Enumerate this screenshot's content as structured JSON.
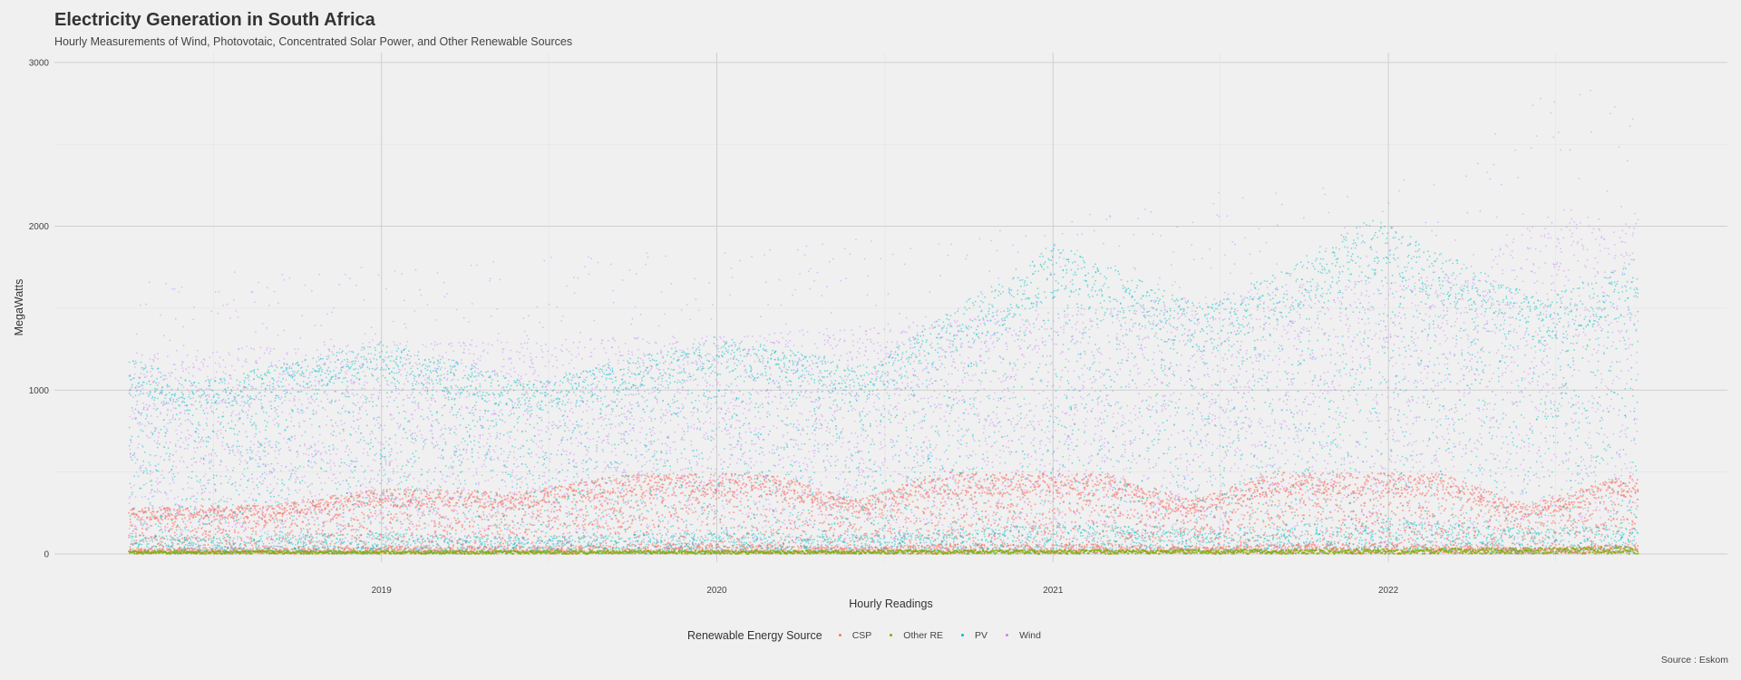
{
  "title": "Electricity Generation in South Africa",
  "subtitle": "Hourly Measurements of Wind, Photovotaic, Concentrated Solar Power, and Other Renewable Sources",
  "caption": "Source : Eskom",
  "chart_data": {
    "type": "scatter",
    "xlabel": "Hourly Readings",
    "ylabel": "MegaWatts",
    "x_range": [
      "2018-04-01",
      "2022-09-30"
    ],
    "xlim": [
      "2018-01-10",
      "2023-01-05"
    ],
    "ylim": [
      -50,
      3060
    ],
    "yticks": [
      0,
      1000,
      2000,
      3000
    ],
    "xticks": [
      "2019",
      "2020",
      "2021",
      "2022"
    ],
    "grid": true,
    "legend_title": "Renewable Energy Source",
    "legend_position": "bottom",
    "series": [
      {
        "name": "CSP",
        "color": "#F8766D",
        "typical_max": [
          {
            "date": "2018-04-01",
            "value": 280
          },
          {
            "date": "2018-09-01",
            "value": 300
          },
          {
            "date": "2019-01-01",
            "value": 400
          },
          {
            "date": "2019-06-01",
            "value": 380
          },
          {
            "date": "2019-10-01",
            "value": 490
          },
          {
            "date": "2020-03-01",
            "value": 490
          },
          {
            "date": "2020-06-01",
            "value": 330
          },
          {
            "date": "2020-09-01",
            "value": 500
          },
          {
            "date": "2021-03-01",
            "value": 490
          },
          {
            "date": "2021-06-01",
            "value": 330
          },
          {
            "date": "2021-09-01",
            "value": 500
          },
          {
            "date": "2022-03-01",
            "value": 490
          },
          {
            "date": "2022-06-01",
            "value": 300
          },
          {
            "date": "2022-09-30",
            "value": 500
          }
        ]
      },
      {
        "name": "Other RE",
        "color": "#7CAE00",
        "typical_max": [
          {
            "date": "2018-04-01",
            "value": 20
          },
          {
            "date": "2020-01-01",
            "value": 20
          },
          {
            "date": "2022-01-01",
            "value": 30
          },
          {
            "date": "2022-09-30",
            "value": 45
          }
        ]
      },
      {
        "name": "PV",
        "color": "#00BFC4",
        "typical_max": [
          {
            "date": "2018-04-01",
            "value": 1200
          },
          {
            "date": "2018-06-15",
            "value": 1050
          },
          {
            "date": "2019-01-01",
            "value": 1300
          },
          {
            "date": "2019-06-15",
            "value": 1050
          },
          {
            "date": "2020-01-01",
            "value": 1330
          },
          {
            "date": "2020-06-15",
            "value": 1150
          },
          {
            "date": "2021-01-01",
            "value": 1900
          },
          {
            "date": "2021-06-15",
            "value": 1500
          },
          {
            "date": "2021-12-15",
            "value": 2050
          },
          {
            "date": "2022-06-15",
            "value": 1550
          },
          {
            "date": "2022-09-30",
            "value": 1800
          }
        ]
      },
      {
        "name": "Wind",
        "color": "#C77CFF",
        "typical_max": [
          {
            "date": "2018-04-01",
            "value": 1700
          },
          {
            "date": "2019-01-01",
            "value": 1800
          },
          {
            "date": "2020-01-01",
            "value": 1850
          },
          {
            "date": "2021-01-01",
            "value": 2050
          },
          {
            "date": "2021-10-01",
            "value": 2300
          },
          {
            "date": "2022-03-01",
            "value": 2350
          },
          {
            "date": "2022-07-01",
            "value": 2900
          },
          {
            "date": "2022-09-30",
            "value": 2800
          }
        ]
      }
    ]
  }
}
